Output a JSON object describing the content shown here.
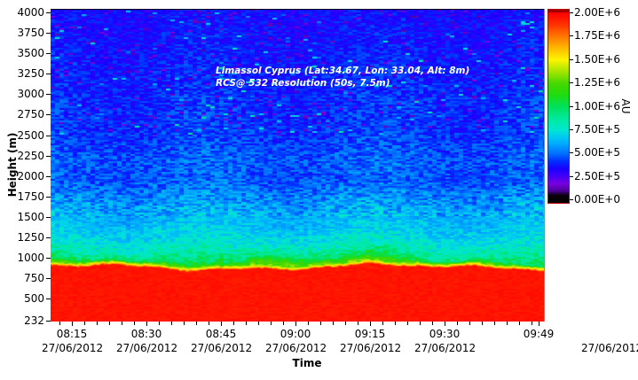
{
  "annotation": {
    "line1": "Limassol Cyprus (Lat:34.67, Lon: 33.04, Alt: 8m)",
    "line2": "RCS@ 532 Resolution (50s, 7.5m)"
  },
  "chart_data": {
    "type": "heatmap",
    "title": "Limassol Cyprus (Lat:34.67, Lon: 33.04, Alt: 8m)",
    "subtitle": "RCS@ 532 Resolution (50s, 7.5m)",
    "xlabel": "Time",
    "ylabel": "Height (m)",
    "colorbar_label": "AU",
    "x_ticks": [
      {
        "time": "08:15",
        "date": "27/06/2012"
      },
      {
        "time": "08:30",
        "date": "27/06/2012"
      },
      {
        "time": "08:45",
        "date": "27/06/2012"
      },
      {
        "time": "09:00",
        "date": "27/06/2012"
      },
      {
        "time": "09:15",
        "date": "27/06/2012"
      },
      {
        "time": "09:30",
        "date": "27/06/2012"
      },
      {
        "time": "09:49",
        "date": "27/06/2012"
      }
    ],
    "y_ticks": [
      4000,
      3750,
      3500,
      3250,
      3000,
      2750,
      2500,
      2250,
      2000,
      1750,
      1500,
      1250,
      1000,
      750,
      500,
      232
    ],
    "y_range_m": [
      232,
      4000
    ],
    "value_range_au": [
      0,
      2000000
    ],
    "colorbar_ticks": [
      "2.00E+6",
      "1.75E+6",
      "1.50E+6",
      "1.25E+6",
      "1.00E+6",
      "7.50E+5",
      "5.00E+5",
      "2.50E+5",
      "0.00E+0"
    ],
    "colorbar_overrange_color": "#a00000",
    "colorbar_underrange_color": "#000000",
    "colorbar_border_color": "#c00000",
    "colormap_stops": [
      [
        0.0,
        "#000000"
      ],
      [
        0.03,
        "#0d0010"
      ],
      [
        0.05,
        "#4b0096"
      ],
      [
        0.09,
        "#7a00e0"
      ],
      [
        0.125,
        "#4800f5"
      ],
      [
        0.17,
        "#1a00ff"
      ],
      [
        0.21,
        "#0030ff"
      ],
      [
        0.25,
        "#006eff"
      ],
      [
        0.3,
        "#00a8ff"
      ],
      [
        0.345,
        "#00ceef"
      ],
      [
        0.375,
        "#00e6d2"
      ],
      [
        0.43,
        "#00eaa2"
      ],
      [
        0.5,
        "#00e15e"
      ],
      [
        0.56,
        "#1edc12"
      ],
      [
        0.625,
        "#47d800"
      ],
      [
        0.69,
        "#a9e600"
      ],
      [
        0.75,
        "#fdf500"
      ],
      [
        0.81,
        "#ffba00"
      ],
      [
        0.875,
        "#ff7800"
      ],
      [
        0.935,
        "#ff3400"
      ],
      [
        1.0,
        "#ff0000"
      ]
    ],
    "features": {
      "saturated_red_zone": {
        "from_m": 232,
        "top_mean_m": 885,
        "top_variation_m": 45,
        "value_au": 1950000
      },
      "aerosol_transition": {
        "orange_band_thickness_m": 16,
        "yellow_band_thickness_m": 26,
        "green_band_mean_thickness_m": 58,
        "green_band_values_au": [
          1000000,
          1320000
        ]
      },
      "background_profile_au_by_height_m": [
        [
          900,
          830000
        ],
        [
          1050,
          770000
        ],
        [
          1250,
          700000
        ],
        [
          1500,
          630000
        ],
        [
          1750,
          565000
        ],
        [
          2000,
          515000
        ],
        [
          2300,
          470000
        ],
        [
          2700,
          430000
        ],
        [
          3100,
          400000
        ],
        [
          3500,
          378000
        ],
        [
          4100,
          352000
        ]
      ],
      "dark_layer_bands_m": [
        1950,
        2550
      ],
      "noise_speckle_colors_above_2500m": [
        "purple",
        "cyan"
      ]
    }
  }
}
